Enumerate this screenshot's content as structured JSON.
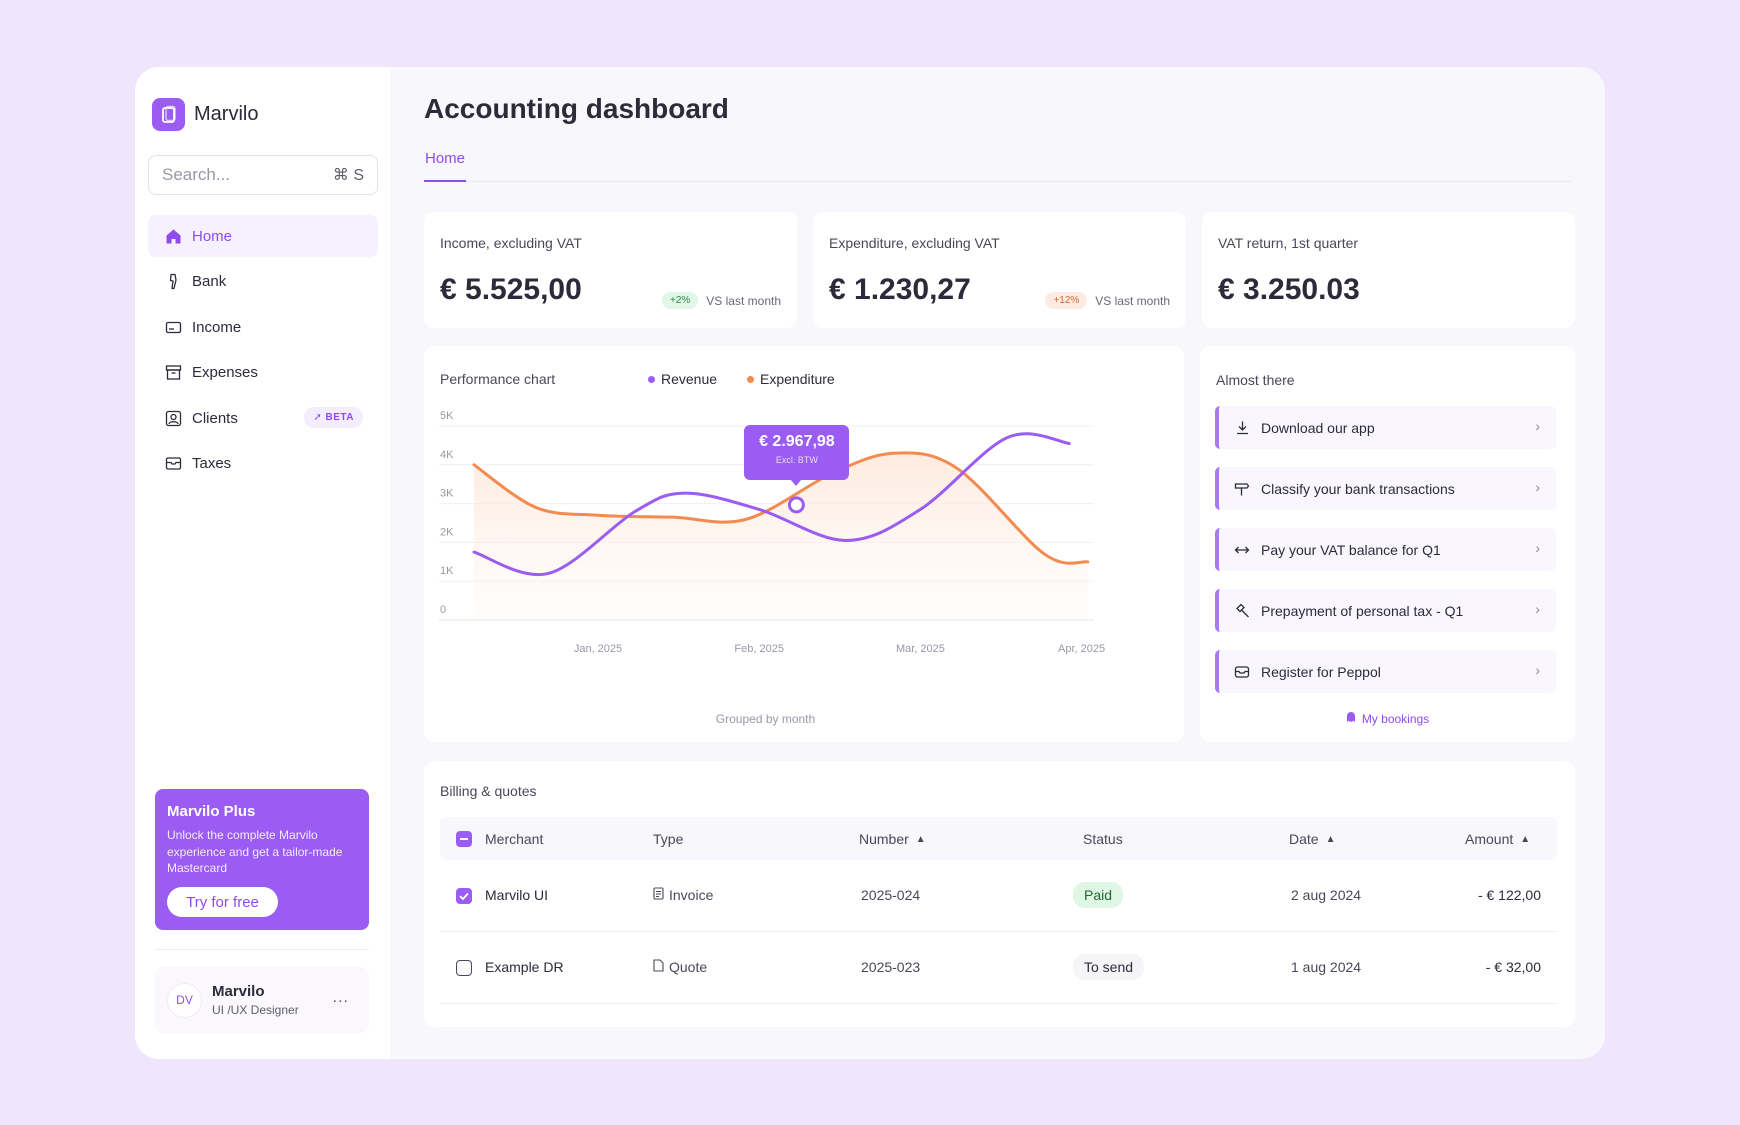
{
  "brand": {
    "name": "Marvilo"
  },
  "search": {
    "placeholder": "Search...",
    "shortcut": "⌘ S"
  },
  "nav": {
    "items": [
      {
        "label": "Home",
        "icon": "home-icon",
        "active": true
      },
      {
        "label": "Bank",
        "icon": "bank-icon"
      },
      {
        "label": "Income",
        "icon": "income-icon"
      },
      {
        "label": "Expenses",
        "icon": "expenses-icon"
      },
      {
        "label": "Clients",
        "icon": "clients-icon",
        "badge": "BETA"
      },
      {
        "label": "Taxes",
        "icon": "taxes-icon"
      }
    ]
  },
  "promo": {
    "title": "Marvilo Plus",
    "text": "Unlock the complete Marvilo experience and get a tailor-made Mastercard",
    "button": "Try for free"
  },
  "profile": {
    "initials": "DV",
    "name": "Marvilo",
    "role": "UI /UX Designer",
    "more": "..."
  },
  "page": {
    "title": "Accounting dashboard",
    "tab": "Home"
  },
  "stats": [
    {
      "label": "Income, excluding VAT",
      "value": "€ 5.525,00",
      "badge": "+2%",
      "badge_tone": "green",
      "comparison": "VS last month"
    },
    {
      "label": "Expenditure, excluding VAT",
      "value": "€ 1.230,27",
      "badge": "+12%",
      "badge_tone": "orange",
      "comparison": "VS last month"
    },
    {
      "label": "VAT return, 1st quarter",
      "value": "€ 3.250.03"
    }
  ],
  "chart_data": {
    "type": "line",
    "title": "Performance chart",
    "categories": [
      "Jan, 2025",
      "Feb, 2025",
      "Mar, 2025",
      "Apr, 2025"
    ],
    "ylim": [
      0,
      5000
    ],
    "yticks": [
      "0",
      "1K",
      "2K",
      "3K",
      "4K",
      "5K"
    ],
    "xlabel": "Grouped by month",
    "legend_position": "top",
    "grid": true,
    "series": [
      {
        "name": "Revenue",
        "color": "#9a5cf2",
        "points": [
          [
            0.0,
            1750
          ],
          [
            0.6,
            1200
          ],
          [
            1.3,
            2800
          ],
          [
            1.7,
            3270
          ],
          [
            2.3,
            2850
          ],
          [
            3.0,
            2050
          ],
          [
            3.6,
            2850
          ],
          [
            4.3,
            4700
          ],
          [
            4.8,
            4550
          ]
        ]
      },
      {
        "name": "Expenditure",
        "color": "#f38a4f",
        "points": [
          [
            0.0,
            4000
          ],
          [
            0.5,
            2900
          ],
          [
            1.0,
            2700
          ],
          [
            1.6,
            2650
          ],
          [
            2.2,
            2600
          ],
          [
            2.9,
            3800
          ],
          [
            3.4,
            4300
          ],
          [
            3.9,
            3900
          ],
          [
            4.6,
            1700
          ],
          [
            4.95,
            1500
          ]
        ]
      }
    ],
    "tooltip": {
      "series": "Revenue",
      "x": 2.6,
      "y": 2967.98,
      "value": "€ 2.967,98",
      "sublabel": "Excl. BTW"
    }
  },
  "tasks": {
    "title": "Almost there",
    "items": [
      {
        "label": "Download our app",
        "icon": "download-icon"
      },
      {
        "label": "Classify your bank transactions",
        "icon": "tag-icon"
      },
      {
        "label": "Pay your VAT balance for Q1",
        "icon": "transfer-icon"
      },
      {
        "label": "Prepayment of personal tax - Q1",
        "icon": "hammer-icon"
      },
      {
        "label": "Register for Peppol",
        "icon": "inbox-icon"
      }
    ],
    "link": "My bookings"
  },
  "billing": {
    "title": "Billing & quotes",
    "columns": {
      "merchant": "Merchant",
      "type": "Type",
      "number": "Number",
      "status": "Status",
      "date": "Date",
      "amount": "Amount"
    },
    "rows": [
      {
        "checked": true,
        "merchant": "Marvilo UI",
        "type": "Invoice",
        "number": "2025-024",
        "status": "Paid",
        "date": "2 aug 2024",
        "amount": "- € 122,00"
      },
      {
        "checked": false,
        "merchant": "Example DR",
        "type": "Quote",
        "number": "2025-023",
        "status": "To send",
        "date": "1 aug 2024",
        "amount": "- € 32,00"
      }
    ]
  }
}
